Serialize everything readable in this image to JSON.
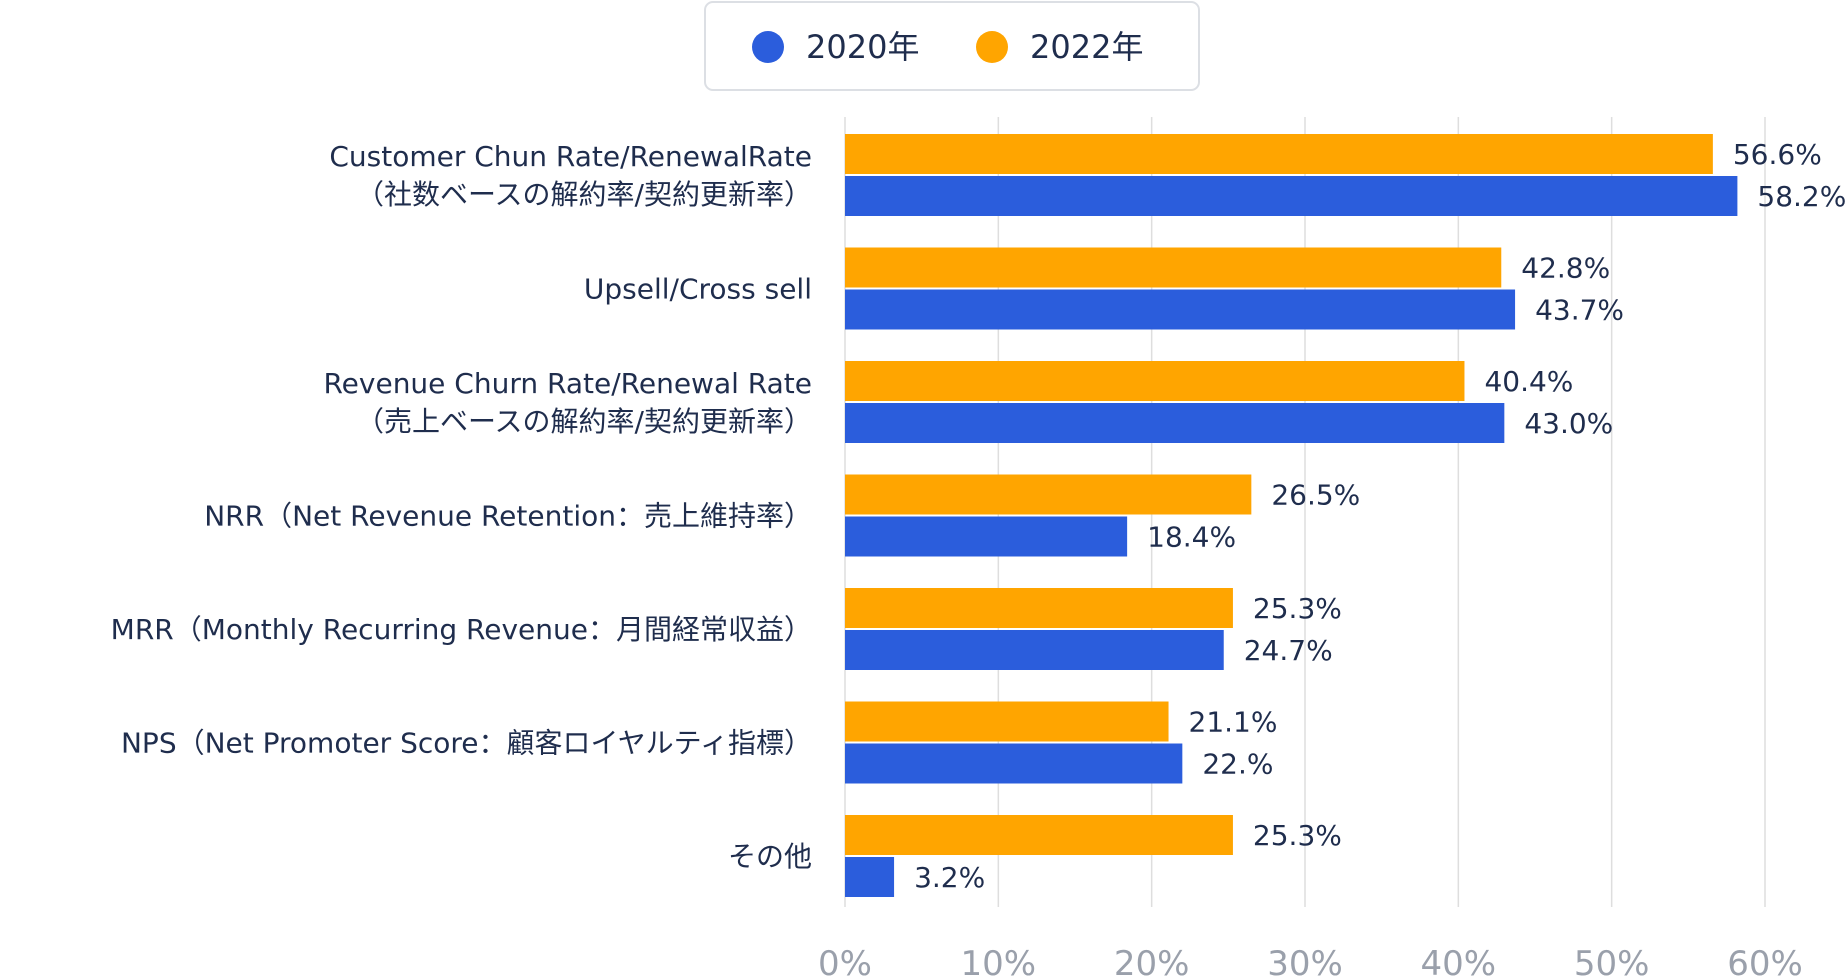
{
  "chart_data": {
    "type": "bar",
    "orientation": "horizontal",
    "title": "",
    "xlabel": "",
    "ylabel": "",
    "xlim": [
      0,
      60
    ],
    "grid": true,
    "legend_position": "top-center",
    "x_ticks": [
      "0%",
      "10%",
      "20%",
      "30%",
      "40%",
      "50%",
      "60%"
    ],
    "x_tick_values": [
      0,
      10,
      20,
      30,
      40,
      50,
      60
    ],
    "categories": [
      [
        "Customer Chun Rate/RenewalRate",
        "（社数ベースの解約率/契約更新率）"
      ],
      [
        "Upsell/Cross sell"
      ],
      [
        "Revenue Churn Rate/Renewal Rate",
        "（売上ベースの解約率/契約更新率）"
      ],
      [
        "NRR（Net Revenue Retention：売上維持率）"
      ],
      [
        "MRR（Monthly Recurring Revenue：月間経常収益）"
      ],
      [
        "NPS（Net Promoter Score：顧客ロイヤルティ指標）"
      ],
      [
        "その他"
      ]
    ],
    "series": [
      {
        "name": "2022年",
        "color": "#ffa500",
        "values": [
          56.6,
          42.8,
          40.4,
          26.5,
          25.3,
          21.1,
          25.3
        ],
        "labels": [
          "56.6%",
          "42.8%",
          "40.4%",
          "26.5%",
          "25.3%",
          "21.1%",
          "25.3%"
        ]
      },
      {
        "name": "2020年",
        "color": "#2b5ddc",
        "values": [
          58.2,
          43.7,
          43.0,
          18.4,
          24.7,
          22.0,
          3.2
        ],
        "labels": [
          "58.2%",
          "43.7%",
          "43.0%",
          "18.4%",
          "24.7%",
          "22.%",
          "3.2%"
        ]
      }
    ],
    "legend": [
      {
        "name": "2020年",
        "color": "#2b5ddc"
      },
      {
        "name": "2022年",
        "color": "#ffa500"
      }
    ]
  }
}
